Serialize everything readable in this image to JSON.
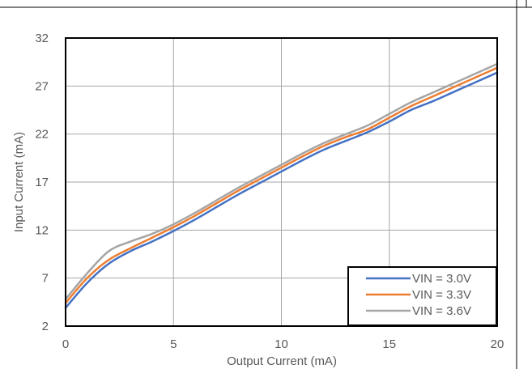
{
  "chart_data": {
    "type": "line",
    "xlabel": "Output Current (mA)",
    "ylabel": "Input Current (mA)",
    "xlim": [
      0,
      20
    ],
    "ylim": [
      2,
      32
    ],
    "x_ticks": [
      "0",
      "5",
      "10",
      "15",
      "20"
    ],
    "y_ticks": [
      "2",
      "7",
      "12",
      "17",
      "22",
      "27",
      "32"
    ],
    "grid": true,
    "legend_position": "bottom-right",
    "series": [
      {
        "name": "VIN = 3.0V",
        "color": "#4472C4",
        "x": [
          0,
          1,
          2,
          3,
          4,
          5,
          6,
          7,
          8,
          9,
          10,
          11,
          12,
          13,
          14,
          15,
          16,
          17,
          18,
          19,
          20
        ],
        "values": [
          3.9,
          6.5,
          8.5,
          9.8,
          10.8,
          11.9,
          13.1,
          14.4,
          15.7,
          16.9,
          18.1,
          19.3,
          20.4,
          21.3,
          22.2,
          23.3,
          24.5,
          25.4,
          26.4,
          27.4,
          28.4
        ]
      },
      {
        "name": "VIN = 3.3V",
        "color": "#ED7D31",
        "x": [
          0,
          1,
          2,
          3,
          4,
          5,
          6,
          7,
          8,
          9,
          10,
          11,
          12,
          13,
          14,
          15,
          16,
          17,
          18,
          19,
          20
        ],
        "values": [
          4.4,
          7.0,
          8.9,
          10.1,
          11.2,
          12.3,
          13.5,
          14.8,
          16.1,
          17.3,
          18.5,
          19.7,
          20.8,
          21.7,
          22.5,
          23.7,
          24.9,
          25.9,
          26.9,
          27.9,
          28.9
        ]
      },
      {
        "name": "VIN = 3.6V",
        "color": "#A5A5A5",
        "x": [
          0,
          1,
          2,
          3,
          4,
          5,
          6,
          7,
          8,
          9,
          10,
          11,
          12,
          13,
          14,
          15,
          16,
          17,
          18,
          19,
          20
        ],
        "values": [
          4.8,
          7.5,
          9.8,
          10.8,
          11.6,
          12.6,
          13.8,
          15.1,
          16.4,
          17.6,
          18.8,
          20.0,
          21.1,
          22.0,
          22.9,
          24.1,
          25.3,
          26.3,
          27.3,
          28.3,
          29.3
        ]
      }
    ]
  }
}
